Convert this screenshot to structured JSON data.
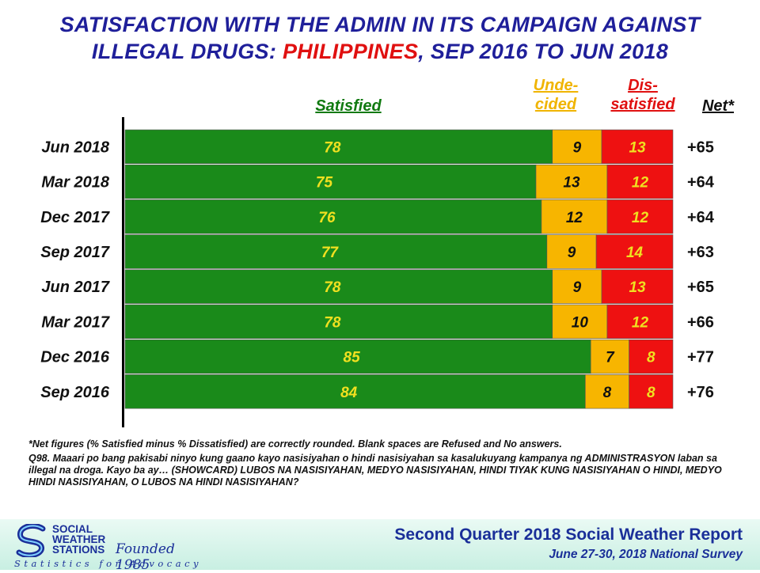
{
  "title": {
    "line1": "SATISFACTION WITH THE ADMIN IN ITS CAMPAIGN AGAINST",
    "line2_prefix": "ILLEGAL DRUGS: ",
    "line2_highlight": "PHILIPPINES",
    "line2_suffix": ", SEP 2016 TO JUN 2018"
  },
  "headers": {
    "satisfied": "Satisfied",
    "undecided_1": "Unde-",
    "undecided_2": "cided",
    "dissatisfied_1": "Dis-",
    "dissatisfied_2": "satisfied",
    "net": "Net*"
  },
  "chart_data": {
    "type": "bar",
    "orientation": "horizontal",
    "stacked": true,
    "categories": [
      "Jun 2018",
      "Mar 2018",
      "Dec 2017",
      "Sep 2017",
      "Jun 2017",
      "Mar 2017",
      "Dec 2016",
      "Sep 2016"
    ],
    "series": [
      {
        "name": "Satisfied",
        "color": "#1a8a1a",
        "label_color": "#f0e020",
        "values": [
          78,
          75,
          76,
          77,
          78,
          78,
          85,
          84
        ]
      },
      {
        "name": "Undecided",
        "color": "#f7b500",
        "label_color": "#111111",
        "values": [
          9,
          13,
          12,
          9,
          9,
          10,
          7,
          8
        ]
      },
      {
        "name": "Dissatisfied",
        "color": "#ee1111",
        "label_color": "#f0e020",
        "values": [
          13,
          12,
          12,
          14,
          13,
          12,
          8,
          8
        ]
      }
    ],
    "net": [
      "+65",
      "+64",
      "+64",
      "+63",
      "+65",
      "+66",
      "+77",
      "+76"
    ],
    "xlim": [
      0,
      100
    ]
  },
  "notes": {
    "net_note": "*Net figures (% Satisfied minus % Dissatisfied) are correctly rounded. Blank spaces are Refused and No answers.",
    "question": "Q98. Maaari po bang pakisabi ninyo kung gaano kayo nasisiyahan o hindi nasisiyahan sa kasalukuyang kampanya ng ADMINISTRASYON laban sa illegal  na droga.   Kayo ba ay… (SHOWCARD) LUBOS NA NASISIYAHAN, MEDYO NASISIYAHAN, HINDI TIYAK KUNG NASISIYAHAN O HINDI, MEDYO HINDI NASISIYAHAN, O LUBOS NA HINDI NASISIYAHAN?"
  },
  "footer": {
    "logo_line1": "SOCIAL",
    "logo_line2": "WEATHER",
    "logo_line3": "STATIONS",
    "founded": "Founded 1985",
    "tagline": "Statistics for Advocacy",
    "report_title": "Second Quarter 2018 Social Weather Report",
    "report_subtitle": "June 27-30, 2018 National Survey"
  }
}
